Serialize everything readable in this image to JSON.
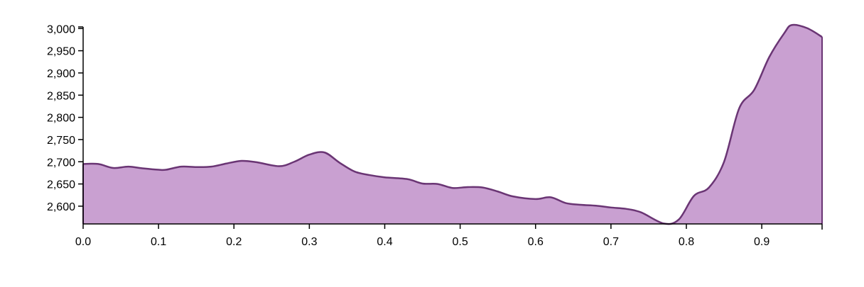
{
  "chart_data": {
    "type": "area",
    "title": "",
    "xlabel": "",
    "ylabel": "",
    "xlim": [
      0,
      0.98
    ],
    "ylim": [
      2560,
      3010
    ],
    "grid": false,
    "x_ticks": [
      "0.0",
      "0.1",
      "0.2",
      "0.3",
      "0.4",
      "0.5",
      "0.6",
      "0.7",
      "0.8",
      "0.9"
    ],
    "x_tick_values": [
      0,
      0.1,
      0.2,
      0.3,
      0.4,
      0.5,
      0.6,
      0.7,
      0.8,
      0.9
    ],
    "y_ticks": [
      "2,600",
      "2,650",
      "2,700",
      "2,750",
      "2,800",
      "2,850",
      "2,900",
      "2,950",
      "3,000"
    ],
    "y_tick_values": [
      2600,
      2650,
      2700,
      2750,
      2800,
      2850,
      2900,
      2950,
      3000
    ],
    "colors": {
      "fill": "#c9a0d1",
      "stroke": "#6a3574",
      "axis": "#000000"
    },
    "series": [
      {
        "x": [
          0.0,
          0.02,
          0.04,
          0.06,
          0.08,
          0.1,
          0.11,
          0.13,
          0.15,
          0.17,
          0.19,
          0.21,
          0.23,
          0.26,
          0.28,
          0.3,
          0.32,
          0.34,
          0.36,
          0.38,
          0.4,
          0.43,
          0.45,
          0.47,
          0.49,
          0.51,
          0.53,
          0.55,
          0.57,
          0.6,
          0.62,
          0.64,
          0.66,
          0.68,
          0.7,
          0.72,
          0.74,
          0.77,
          0.79,
          0.81,
          0.83,
          0.85,
          0.87,
          0.89,
          0.91,
          0.93,
          0.94,
          0.96,
          0.98
        ],
        "values": [
          2695,
          2695,
          2686,
          2689,
          2685,
          2682,
          2682,
          2689,
          2688,
          2689,
          2696,
          2702,
          2699,
          2690,
          2700,
          2716,
          2721,
          2698,
          2678,
          2670,
          2665,
          2661,
          2651,
          2650,
          2641,
          2643,
          2642,
          2633,
          2622,
          2616,
          2620,
          2607,
          2603,
          2601,
          2597,
          2594,
          2586,
          2561,
          2570,
          2623,
          2642,
          2700,
          2820,
          2862,
          2936,
          2990,
          3008,
          3001,
          2981
        ]
      }
    ]
  }
}
